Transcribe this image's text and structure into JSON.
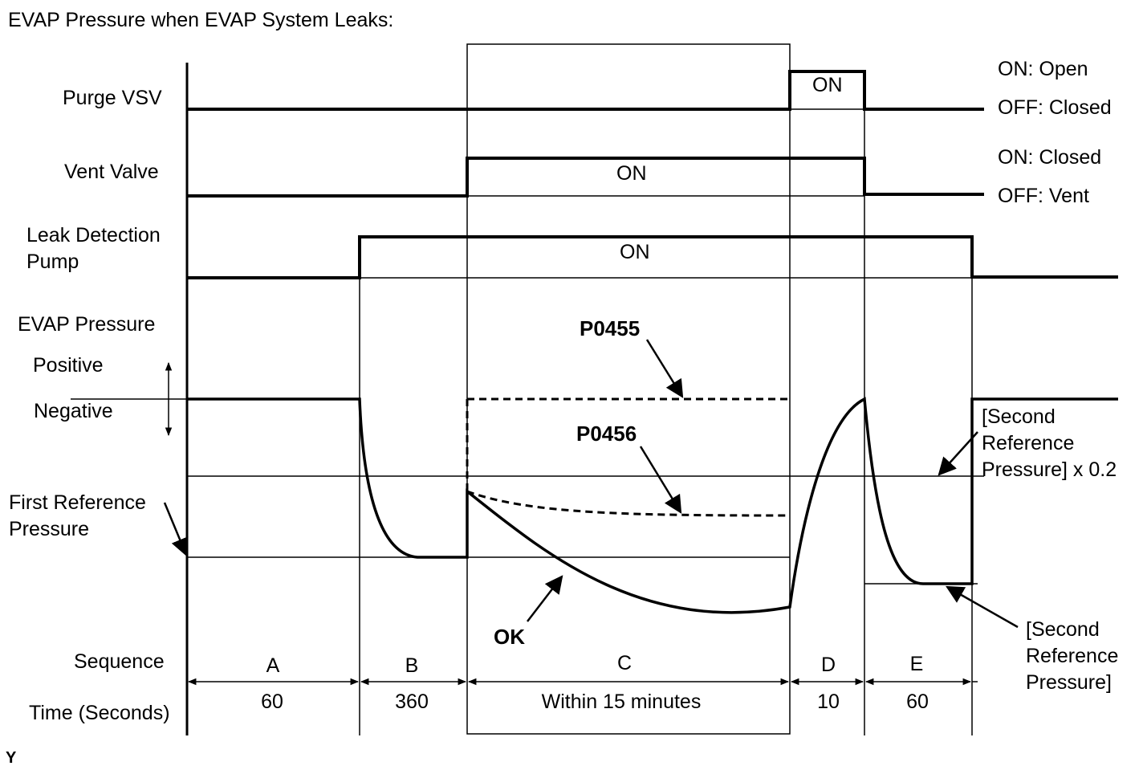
{
  "title": "EVAP Pressure when EVAP System Leaks:",
  "rows": {
    "purge_vsv": "Purge VSV",
    "vent_valve": "Vent Valve",
    "leak_pump_line1": "Leak Detection",
    "leak_pump_line2": "Pump",
    "evap_pressure": "EVAP Pressure",
    "positive": "Positive",
    "negative": "Negative",
    "first_ref_line1": "First Reference",
    "first_ref_line2": "Pressure",
    "sequence": "Sequence",
    "time": "Time (Seconds)"
  },
  "state_labels": {
    "purge_on": "ON",
    "vent_on": "ON",
    "pump_on": "ON"
  },
  "legend": {
    "purge_on": "ON: Open",
    "purge_off": "OFF: Closed",
    "vent_on": "ON: Closed",
    "vent_off": "OFF: Vent"
  },
  "annotations": {
    "p0455": "P0455",
    "p0456": "P0456",
    "ok": "OK",
    "second_ref_02_line1": "[Second",
    "second_ref_02_line2": "Reference",
    "second_ref_02_line3": "Pressure] x 0.2",
    "second_ref_line1": "[Second",
    "second_ref_line2": "Reference",
    "second_ref_line3": "Pressure]"
  },
  "sequence": [
    {
      "letter": "A",
      "time": "60"
    },
    {
      "letter": "B",
      "time": "360"
    },
    {
      "letter": "C",
      "time": "Within 15 minutes"
    },
    {
      "letter": "D",
      "time": "10"
    },
    {
      "letter": "E",
      "time": "60"
    }
  ],
  "footer_mark": "Y"
}
